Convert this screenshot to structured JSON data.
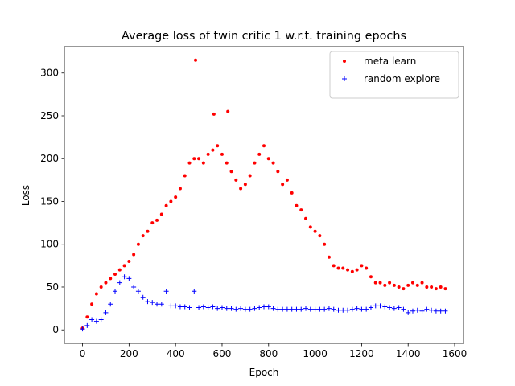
{
  "chart_data": {
    "type": "scatter",
    "title": "Average loss of twin critic 1 w.r.t. training epochs",
    "xlabel": "Epoch",
    "ylabel": "Loss",
    "xlim": [
      -78,
      1638
    ],
    "ylim": [
      -15.75,
      330.75
    ],
    "xticks": [
      0,
      200,
      400,
      600,
      800,
      1000,
      1200,
      1400,
      1600
    ],
    "yticks": [
      0,
      50,
      100,
      150,
      200,
      250,
      300
    ],
    "legend": "upper right",
    "series": [
      {
        "name": "meta learn",
        "color": "#ff0000",
        "marker": "dot",
        "x": [
          0,
          20,
          40,
          60,
          80,
          100,
          120,
          140,
          160,
          180,
          200,
          220,
          240,
          260,
          280,
          300,
          320,
          340,
          360,
          380,
          400,
          420,
          440,
          460,
          480,
          486,
          500,
          520,
          540,
          560,
          565,
          580,
          600,
          620,
          625,
          640,
          660,
          680,
          700,
          720,
          740,
          760,
          780,
          800,
          820,
          840,
          860,
          880,
          900,
          920,
          940,
          960,
          980,
          1000,
          1020,
          1040,
          1060,
          1080,
          1100,
          1120,
          1140,
          1160,
          1180,
          1200,
          1220,
          1240,
          1260,
          1280,
          1300,
          1320,
          1340,
          1360,
          1380,
          1400,
          1420,
          1440,
          1460,
          1480,
          1500,
          1520,
          1540,
          1560
        ],
        "values": [
          2,
          15,
          30,
          42,
          50,
          55,
          60,
          65,
          70,
          75,
          80,
          88,
          100,
          110,
          115,
          125,
          128,
          135,
          145,
          150,
          155,
          165,
          180,
          195,
          200,
          315,
          200,
          195,
          205,
          210,
          252,
          215,
          205,
          195,
          255,
          185,
          175,
          165,
          170,
          180,
          195,
          205,
          215,
          200,
          195,
          185,
          170,
          175,
          160,
          145,
          140,
          130,
          120,
          115,
          110,
          100,
          85,
          75,
          72,
          72,
          70,
          68,
          70,
          75,
          72,
          62,
          55,
          55,
          52,
          55,
          52,
          50,
          48,
          52,
          55,
          52,
          55,
          50,
          50,
          48,
          50,
          48
        ]
      },
      {
        "name": "random explore",
        "color": "#0000ff",
        "marker": "plus",
        "x": [
          0,
          20,
          40,
          60,
          80,
          100,
          120,
          140,
          160,
          180,
          200,
          220,
          240,
          260,
          280,
          300,
          320,
          340,
          360,
          380,
          400,
          420,
          440,
          460,
          480,
          500,
          520,
          540,
          560,
          580,
          600,
          620,
          640,
          660,
          680,
          700,
          720,
          740,
          760,
          780,
          800,
          820,
          840,
          860,
          880,
          900,
          920,
          940,
          960,
          980,
          1000,
          1020,
          1040,
          1060,
          1080,
          1100,
          1120,
          1140,
          1160,
          1180,
          1200,
          1220,
          1240,
          1260,
          1280,
          1300,
          1320,
          1340,
          1360,
          1380,
          1400,
          1420,
          1440,
          1460,
          1480,
          1500,
          1520,
          1540,
          1560
        ],
        "values": [
          1,
          5,
          12,
          10,
          12,
          20,
          30,
          45,
          55,
          62,
          60,
          50,
          45,
          38,
          33,
          32,
          30,
          30,
          45,
          28,
          28,
          27,
          27,
          26,
          45,
          26,
          27,
          26,
          27,
          25,
          26,
          25,
          25,
          24,
          25,
          24,
          24,
          25,
          26,
          27,
          27,
          25,
          24,
          24,
          24,
          24,
          24,
          24,
          25,
          24,
          24,
          24,
          24,
          25,
          24,
          23,
          23,
          23,
          24,
          25,
          24,
          24,
          26,
          28,
          28,
          27,
          26,
          25,
          26,
          24,
          20,
          22,
          23,
          22,
          24,
          23,
          22,
          22,
          22
        ]
      }
    ]
  }
}
